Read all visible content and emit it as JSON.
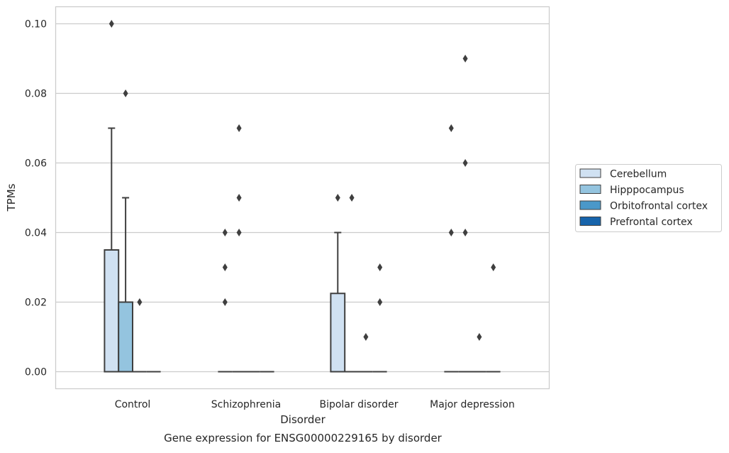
{
  "chart_data": {
    "type": "box",
    "title": "",
    "caption": "Gene expression for ENSG00000229165 by disorder",
    "xlabel": "Disorder",
    "ylabel": "TPMs",
    "categories": [
      "Control",
      "Schizophrenia",
      "Bipolar disorder",
      "Major depression"
    ],
    "ylim": [
      -0.005,
      0.105
    ],
    "yticks": [
      0.0,
      0.02,
      0.04,
      0.06,
      0.08,
      0.1
    ],
    "ytick_labels": [
      "0.00",
      "0.02",
      "0.04",
      "0.06",
      "0.08",
      "0.10"
    ],
    "grid": "horizontal",
    "legend_placement": "center-right outside",
    "series": [
      {
        "name": "Cerebellum",
        "color": "#d0e1f2",
        "boxes": [
          {
            "category": "Control",
            "whislo": 0.0,
            "q1": 0.0,
            "median": 0.0,
            "q3": 0.035,
            "whishi": 0.07,
            "fliers": [
              0.1
            ]
          },
          {
            "category": "Schizophrenia",
            "whislo": 0.0,
            "q1": 0.0,
            "median": 0.0,
            "q3": 0.0,
            "whishi": 0.0,
            "fliers": [
              0.02,
              0.03,
              0.04
            ]
          },
          {
            "category": "Bipolar disorder",
            "whislo": 0.0,
            "q1": 0.0,
            "median": 0.0,
            "q3": 0.0225,
            "whishi": 0.04,
            "fliers": [
              0.05
            ]
          },
          {
            "category": "Major depression",
            "whislo": 0.0,
            "q1": 0.0,
            "median": 0.0,
            "q3": 0.0,
            "whishi": 0.0,
            "fliers": [
              0.04,
              0.07
            ]
          }
        ]
      },
      {
        "name": "Hipppocampus",
        "color": "#94c4df",
        "boxes": [
          {
            "category": "Control",
            "whislo": 0.0,
            "q1": 0.0,
            "median": 0.0,
            "q3": 0.02,
            "whishi": 0.05,
            "fliers": [
              0.08
            ]
          },
          {
            "category": "Schizophrenia",
            "whislo": 0.0,
            "q1": 0.0,
            "median": 0.0,
            "q3": 0.0,
            "whishi": 0.0,
            "fliers": [
              0.04,
              0.05,
              0.07
            ]
          },
          {
            "category": "Bipolar disorder",
            "whislo": 0.0,
            "q1": 0.0,
            "median": 0.0,
            "q3": 0.0,
            "whishi": 0.0,
            "fliers": [
              0.05
            ]
          },
          {
            "category": "Major depression",
            "whislo": 0.0,
            "q1": 0.0,
            "median": 0.0,
            "q3": 0.0,
            "whishi": 0.0,
            "fliers": [
              0.04,
              0.06,
              0.09
            ]
          }
        ]
      },
      {
        "name": "Orbitofrontal cortex",
        "color": "#4a98c9",
        "boxes": [
          {
            "category": "Control",
            "whislo": 0.0,
            "q1": 0.0,
            "median": 0.0,
            "q3": 0.0,
            "whishi": 0.0,
            "fliers": [
              0.02
            ]
          },
          {
            "category": "Schizophrenia",
            "whislo": 0.0,
            "q1": 0.0,
            "median": 0.0,
            "q3": 0.0,
            "whishi": 0.0,
            "fliers": []
          },
          {
            "category": "Bipolar disorder",
            "whislo": 0.0,
            "q1": 0.0,
            "median": 0.0,
            "q3": 0.0,
            "whishi": 0.0,
            "fliers": [
              0.01
            ]
          },
          {
            "category": "Major depression",
            "whislo": 0.0,
            "q1": 0.0,
            "median": 0.0,
            "q3": 0.0,
            "whishi": 0.0,
            "fliers": [
              0.01
            ]
          }
        ]
      },
      {
        "name": "Prefrontal cortex",
        "color": "#1764ab",
        "boxes": [
          {
            "category": "Control",
            "whislo": 0.0,
            "q1": 0.0,
            "median": 0.0,
            "q3": 0.0,
            "whishi": 0.0,
            "fliers": []
          },
          {
            "category": "Schizophrenia",
            "whislo": 0.0,
            "q1": 0.0,
            "median": 0.0,
            "q3": 0.0,
            "whishi": 0.0,
            "fliers": []
          },
          {
            "category": "Bipolar disorder",
            "whislo": 0.0,
            "q1": 0.0,
            "median": 0.0,
            "q3": 0.0,
            "whishi": 0.0,
            "fliers": [
              0.02,
              0.03
            ]
          },
          {
            "category": "Major depression",
            "whislo": 0.0,
            "q1": 0.0,
            "median": 0.0,
            "q3": 0.0,
            "whishi": 0.0,
            "fliers": [
              0.03
            ]
          }
        ]
      }
    ]
  }
}
